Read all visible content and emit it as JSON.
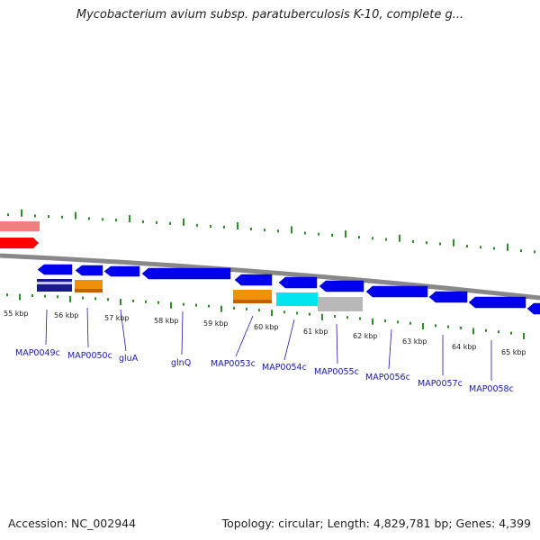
{
  "title": "Mycobacterium avium subsp. paratuberculosis K-10, complete g...",
  "footer": {
    "accession": "Accession: NC_002944",
    "summary": "Topology: circular; Length: 4,829,781 bp; Genes: 4,399"
  },
  "colors": {
    "backbone": "#888888",
    "ticks": "#2e8b2e",
    "gene_forward": "#ff0000",
    "gene_forward_light": "#f08080",
    "gene_reverse": "#0000ee",
    "orange_feature": "#f0900a",
    "cyan_feature": "#00e5ee",
    "gray_feature": "#b8b8b8",
    "label_color": "#1a1aa8"
  },
  "axis": {
    "unit": "kbp",
    "kbp_labels": [
      "55 kbp",
      "56 kbp",
      "57 kbp",
      "58 kbp",
      "59 kbp",
      "60 kbp",
      "61 kbp",
      "62 kbp",
      "63 kbp",
      "64 kbp",
      "65 kbp"
    ]
  },
  "gene_labels": [
    "MAP0049c",
    "MAP0050c",
    "gluA",
    "glnQ",
    "MAP0053c",
    "MAP0054c",
    "MAP0055c",
    "MAP0056c",
    "MAP0057c",
    "MAP0058c"
  ]
}
